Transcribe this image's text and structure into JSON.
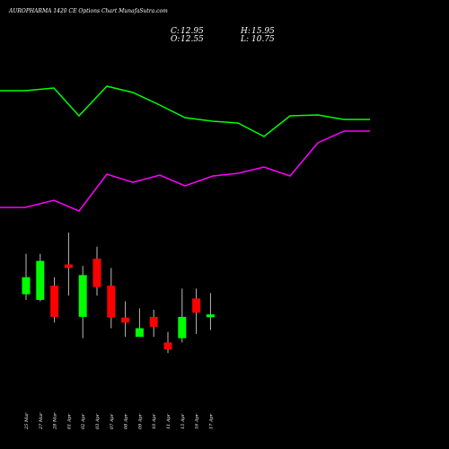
{
  "chart_data": {
    "type": "candlestick",
    "title": "AUROPHARMA 1420 CE Options Chart MunafaSutra.com",
    "ohlc_readout": {
      "c_label": "C:",
      "c_value": "12.95",
      "h_label": "H:",
      "h_value": "15.95",
      "o_label": "O:",
      "o_value": "12.55",
      "l_label": "L:",
      "l_value": "10.75"
    },
    "up_color": "#00ff00",
    "down_color": "#ff0000",
    "categories": [
      "25 Mar",
      "27 Mar",
      "28 Mar",
      "01 Apr",
      "02 Apr",
      "03 Apr",
      "07 Apr",
      "08 Apr",
      "09 Apr",
      "10 Apr",
      "11 Apr",
      "15 Apr",
      "16 Apr",
      "17 Apr"
    ],
    "candles": [
      {
        "open": 15.8,
        "high": 21.5,
        "low": 15.0,
        "close": 18.2
      },
      {
        "open": 15.0,
        "high": 21.5,
        "low": 14.8,
        "close": 20.5
      },
      {
        "open": 17.0,
        "high": 18.2,
        "low": 11.8,
        "close": 12.6
      },
      {
        "open": 20.0,
        "high": 24.5,
        "low": 15.6,
        "close": 19.5
      },
      {
        "open": 12.6,
        "high": 19.8,
        "low": 9.6,
        "close": 18.5
      },
      {
        "open": 20.8,
        "high": 22.5,
        "low": 15.6,
        "close": 16.8
      },
      {
        "open": 17.0,
        "high": 19.5,
        "low": 11.0,
        "close": 12.5
      },
      {
        "open": 12.5,
        "high": 14.8,
        "low": 9.8,
        "close": 11.8
      },
      {
        "open": 9.8,
        "high": 13.8,
        "low": 9.8,
        "close": 11.0
      },
      {
        "open": 12.6,
        "high": 13.6,
        "low": 9.8,
        "close": 11.2
      },
      {
        "open": 9.0,
        "high": 10.5,
        "low": 7.5,
        "close": 8.0
      },
      {
        "open": 9.6,
        "high": 16.6,
        "low": 9.0,
        "close": 12.6
      },
      {
        "open": 15.2,
        "high": 16.6,
        "low": 10.2,
        "close": 13.2
      },
      {
        "open": 12.55,
        "high": 15.95,
        "low": 10.75,
        "close": 12.95
      }
    ],
    "price_range": [
      6,
      25
    ],
    "lines": [
      {
        "color": "#00ff00",
        "values": [
          101,
          101,
          98,
          129,
          96,
          103,
          117,
          131,
          135,
          137,
          152,
          129,
          128,
          133
        ]
      },
      {
        "color": "#ff00ff",
        "values": [
          231,
          231,
          223,
          235,
          194,
          203,
          195,
          207,
          196,
          193,
          186,
          196,
          159,
          146
        ]
      }
    ],
    "grid": false,
    "legend": "none"
  }
}
